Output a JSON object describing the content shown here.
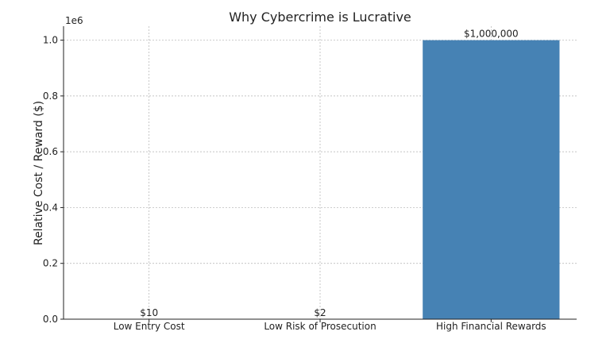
{
  "chart_data": {
    "type": "bar",
    "title": "Why Cybercrime is Lucrative",
    "ylabel": "Relative Cost / Reward ($)",
    "xlabel": "",
    "offset_text": "1e6",
    "categories": [
      "Low Entry Cost",
      "Low Risk of Prosecution",
      "High Financial Rewards"
    ],
    "values": [
      10,
      2,
      1000000
    ],
    "bar_labels": [
      "$10",
      "$2",
      "$1,000,000"
    ],
    "ylim": [
      0,
      1050000
    ],
    "yticks": [
      0,
      200000,
      400000,
      600000,
      800000,
      1000000
    ],
    "ytick_labels": [
      "0.0",
      "0.2",
      "0.4",
      "0.6",
      "0.8",
      "1.0"
    ],
    "grid": true,
    "bar_color": "#4682b4"
  }
}
